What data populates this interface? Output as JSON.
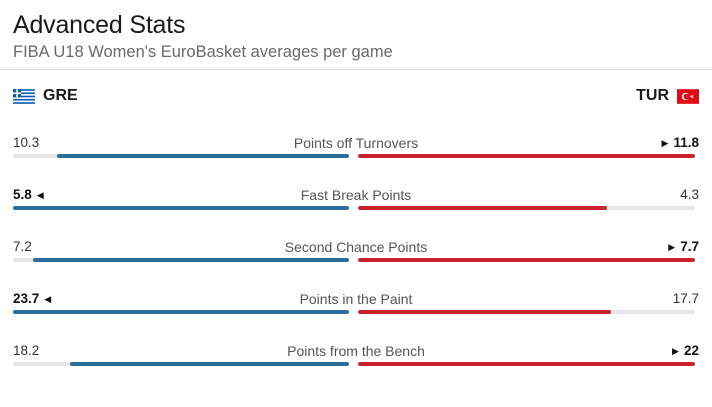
{
  "header": {
    "title": "Advanced Stats",
    "subtitle": "FIBA U18 Women's EuroBasket averages per game"
  },
  "teams": {
    "home": {
      "code": "GRE",
      "flag_icon": "greece-flag-icon",
      "color": "#2c6e9b"
    },
    "away": {
      "code": "TUR",
      "flag_icon": "turkey-flag-icon",
      "color": "#c8232c"
    }
  },
  "stats": [
    {
      "label": "Points off Turnovers",
      "home": "10.3",
      "away": "11.8",
      "home_fill": 0.87,
      "away_fill": 1.0,
      "leader": "away"
    },
    {
      "label": "Fast Break Points",
      "home": "5.8",
      "away": "4.3",
      "home_fill": 1.0,
      "away_fill": 0.74,
      "leader": "home"
    },
    {
      "label": "Second Chance Points",
      "home": "7.2",
      "away": "7.7",
      "home_fill": 0.94,
      "away_fill": 1.0,
      "leader": "away"
    },
    {
      "label": "Points in the Paint",
      "home": "23.7",
      "away": "17.7",
      "home_fill": 1.0,
      "away_fill": 0.75,
      "leader": "home"
    },
    {
      "label": "Points from the Bench",
      "home": "18.2",
      "away": "22",
      "home_fill": 0.83,
      "away_fill": 1.0,
      "leader": "away"
    }
  ]
}
